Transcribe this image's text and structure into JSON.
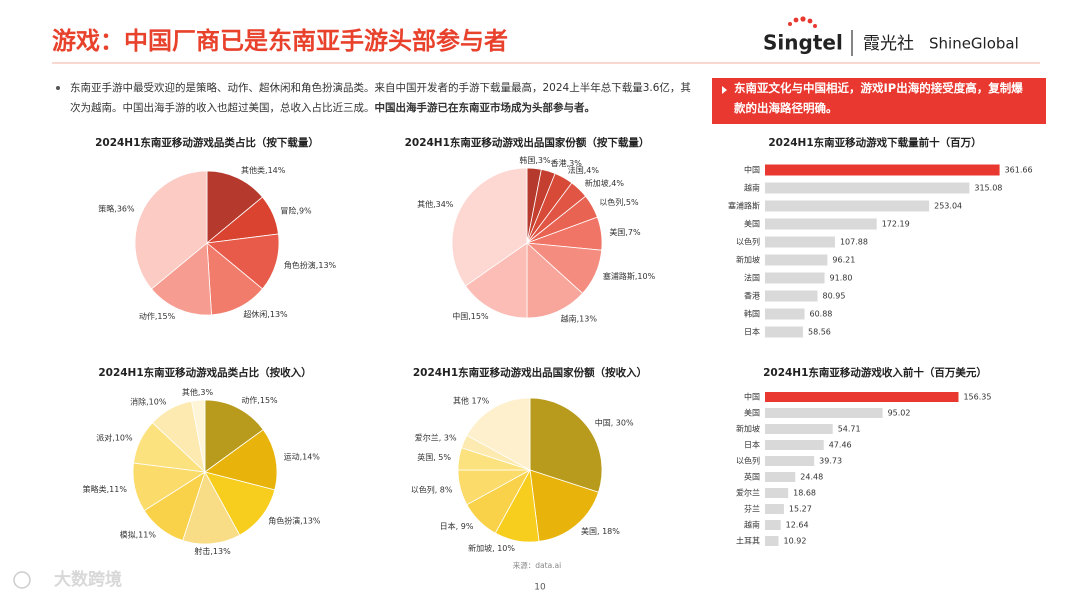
{
  "header": {
    "title": "游戏：中国厂商已是东南亚手游头部参与者",
    "logo_brand": "Singtel",
    "logo_cn": "霞光社",
    "logo_en": "ShineGlobal"
  },
  "intro": {
    "text": "东南亚手游中最受欢迎的是策略、动作、超休闲和角色扮演品类。来自中国开发者的手游下载量最高，2024上半年总下载量3.6亿，其次为越南。中国出海手游的收入也超过美国，总收入占比近三成。",
    "emphasis": "中国出海手游已在东南亚市场成为头部参与者。"
  },
  "callout": "东南亚文化与中国相近，游戏IP出海的接受度高，复制爆款的出海路径明确。",
  "source": "来源：data.ai",
  "page_number": "10",
  "watermark": "大数跨境",
  "chart_data": [
    {
      "type": "pie",
      "title": "2024H1东南亚移动游戏品类占比（按下载量）",
      "values": [
        14,
        9,
        13,
        13,
        15,
        36
      ],
      "value_labels": [
        "其他类,14%",
        "冒险,9%",
        "角色扮演,13%",
        "超休闲,13%",
        "动作,15%",
        "策略,36%"
      ],
      "colors": [
        "#b53a2d",
        "#d9432f",
        "#e85b4a",
        "#f27c6c",
        "#f79c90",
        "#fbcbc4"
      ]
    },
    {
      "type": "pie",
      "title": "2024H1东南亚移动游戏出品国家份额（按下载量）",
      "values": [
        3,
        3,
        4,
        4,
        5,
        7,
        10,
        13,
        15,
        34
      ],
      "value_labels": [
        "韩国,3%",
        "香港,3%",
        "法国,4%",
        "新加坡,4%",
        "以色列,5%",
        "美国,7%",
        "塞浦路斯,10%",
        "越南,13%",
        "中国,15%",
        "其他,34%"
      ],
      "colors": [
        "#b53a2d",
        "#c43f2f",
        "#d64a37",
        "#e05544",
        "#e96353",
        "#f07566",
        "#f58c80",
        "#f8a59b",
        "#fbbdb5",
        "#fdd8d3"
      ]
    },
    {
      "type": "pie",
      "title": "2024H1东南亚移动游戏品类占比（按收入）",
      "values": [
        15,
        14,
        13,
        13,
        11,
        11,
        10,
        10,
        3
      ],
      "value_labels": [
        "动作,15%",
        "运动,14%",
        "角色扮演,13%",
        "射击,13%",
        "模拟,11%",
        "策略类,11%",
        "派对,10%",
        "消除,10%",
        "其他,3%"
      ],
      "colors": [
        "#b89a1c",
        "#e8b40c",
        "#f7cd1e",
        "#f8dc86",
        "#f9d24a",
        "#fbdb6a",
        "#fce27f",
        "#fdeab0",
        "#fef4d6"
      ]
    },
    {
      "type": "pie",
      "title": "2024H1东南亚移动游戏出品国家份额（按收入）",
      "values": [
        30,
        18,
        10,
        9,
        8,
        5,
        3,
        17
      ],
      "value_labels": [
        "中国, 30%",
        "美国, 18%",
        "新加坡, 10%",
        "日本, 9%",
        "以色列, 8%",
        "英国, 5%",
        "爱尔兰, 3%",
        "其他 17%"
      ],
      "colors": [
        "#b89a1c",
        "#e8b40c",
        "#f7cd1e",
        "#f9d24a",
        "#fbdb6a",
        "#fce27f",
        "#fdeab0",
        "#fef0cc"
      ]
    },
    {
      "type": "hbar",
      "title": "2024H1东南亚移动游戏下载量前十（百万）",
      "categories": [
        "中国",
        "越南",
        "塞浦路斯",
        "美国",
        "以色列",
        "新加坡",
        "法国",
        "香港",
        "韩国",
        "日本"
      ],
      "values": [
        361.66,
        315.08,
        253.04,
        172.19,
        107.88,
        96.21,
        91.8,
        80.95,
        60.88,
        58.56
      ],
      "value_labels": [
        "361.66",
        "315.08",
        "253.04",
        "172.19",
        "107.88",
        "96.21",
        "91.80",
        "80.95",
        "60.88",
        "58.56"
      ],
      "colors": [
        "#e8382f",
        "#d9d9d9",
        "#d9d9d9",
        "#d9d9d9",
        "#d9d9d9",
        "#d9d9d9",
        "#d9d9d9",
        "#d9d9d9",
        "#d9d9d9",
        "#d9d9d9"
      ],
      "xlim": [
        0,
        370
      ]
    },
    {
      "type": "hbar",
      "title": "2024H1东南亚移动游戏收入前十（百万美元）",
      "categories": [
        "中国",
        "美国",
        "新加坡",
        "日本",
        "以色列",
        "英国",
        "爱尔兰",
        "芬兰",
        "越南",
        "土耳其"
      ],
      "values": [
        156.35,
        95.02,
        54.71,
        47.46,
        39.73,
        24.48,
        18.68,
        15.27,
        12.64,
        10.92
      ],
      "value_labels": [
        "156.35",
        "95.02",
        "54.71",
        "47.46",
        "39.73",
        "24.48",
        "18.68",
        "15.27",
        "12.64",
        "10.92"
      ],
      "colors": [
        "#e8382f",
        "#d9d9d9",
        "#d9d9d9",
        "#d9d9d9",
        "#d9d9d9",
        "#d9d9d9",
        "#d9d9d9",
        "#d9d9d9",
        "#d9d9d9",
        "#d9d9d9"
      ],
      "xlim": [
        0,
        160
      ]
    }
  ]
}
